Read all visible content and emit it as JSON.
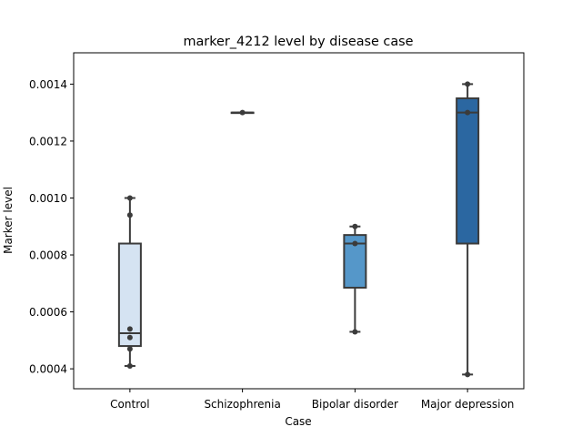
{
  "chart_data": {
    "type": "box",
    "title": "marker_4212 level by disease case",
    "xlabel": "Case",
    "ylabel": "Marker level",
    "ylim": [
      0.00033,
      0.00151
    ],
    "yticks": [
      0.0004,
      0.0006,
      0.0008,
      0.001,
      0.0012,
      0.0014
    ],
    "ytick_labels": [
      "0.0004",
      "0.0006",
      "0.0008",
      "0.0010",
      "0.0012",
      "0.0014"
    ],
    "grid": false,
    "categories": [
      "Control",
      "Schizophrenia",
      "Bipolar disorder",
      "Major depression"
    ],
    "boxes": [
      {
        "category": "Control",
        "whisker_low": 0.00041,
        "q1": 0.00048,
        "median": 0.000525,
        "q3": 0.00084,
        "whisker_high": 0.001,
        "color": "#d5e3f2"
      },
      {
        "category": "Schizophrenia",
        "whisker_low": 0.0013,
        "q1": 0.0013,
        "median": 0.0013,
        "q3": 0.0013,
        "whisker_high": 0.0013,
        "color": "#9ac3df"
      },
      {
        "category": "Bipolar disorder",
        "whisker_low": 0.00053,
        "q1": 0.000685,
        "median": 0.00084,
        "q3": 0.00087,
        "whisker_high": 0.0009,
        "color": "#5597c9"
      },
      {
        "category": "Major depression",
        "whisker_low": 0.00038,
        "q1": 0.00084,
        "median": 0.0013,
        "q3": 0.00135,
        "whisker_high": 0.0014,
        "color": "#2b67a1"
      }
    ],
    "points": [
      {
        "category": "Control",
        "values": [
          0.00041,
          0.00047,
          0.00051,
          0.00054,
          0.00094,
          0.001
        ]
      },
      {
        "category": "Schizophrenia",
        "values": [
          0.0013
        ]
      },
      {
        "category": "Bipolar disorder",
        "values": [
          0.00053,
          0.00084,
          0.0009
        ]
      },
      {
        "category": "Major depression",
        "values": [
          0.00038,
          0.0013,
          0.0014
        ]
      }
    ]
  }
}
